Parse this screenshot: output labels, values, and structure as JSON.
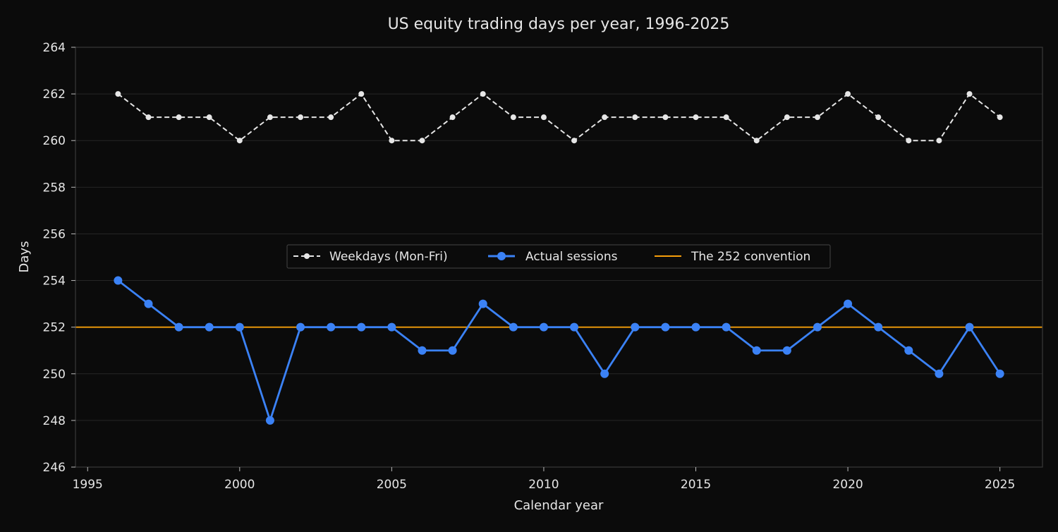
{
  "chart_data": {
    "type": "line",
    "title": "US equity trading days per year, 1996-2025",
    "xlabel": "Calendar year",
    "ylabel": "Days",
    "xlim": [
      1994.6,
      2026.4
    ],
    "ylim": [
      246,
      264
    ],
    "xticks": [
      1995,
      2000,
      2005,
      2010,
      2015,
      2020,
      2025
    ],
    "yticks": [
      246,
      248,
      250,
      252,
      254,
      256,
      258,
      260,
      262,
      264
    ],
    "grid": true,
    "legend_position": "center",
    "x": [
      1996,
      1997,
      1998,
      1999,
      2000,
      2001,
      2002,
      2003,
      2004,
      2005,
      2006,
      2007,
      2008,
      2009,
      2010,
      2011,
      2012,
      2013,
      2014,
      2015,
      2016,
      2017,
      2018,
      2019,
      2020,
      2021,
      2022,
      2023,
      2024,
      2025
    ],
    "series": [
      {
        "name": "Weekdays (Mon-Fri)",
        "color": "#e6e6e6",
        "style": "dashed",
        "values": [
          262,
          261,
          261,
          261,
          260,
          261,
          261,
          261,
          262,
          260,
          260,
          261,
          262,
          261,
          261,
          260,
          261,
          261,
          261,
          261,
          261,
          260,
          261,
          261,
          262,
          261,
          260,
          260,
          262,
          261
        ]
      },
      {
        "name": "Actual sessions",
        "color": "#3b82f6",
        "style": "solid",
        "values": [
          254,
          253,
          252,
          252,
          252,
          248,
          252,
          252,
          252,
          252,
          251,
          251,
          253,
          252,
          252,
          252,
          250,
          252,
          252,
          252,
          252,
          251,
          251,
          252,
          253,
          252,
          251,
          250,
          252,
          250
        ]
      }
    ],
    "reference_lines": [
      {
        "name": "The 252 convention",
        "color": "#f59e0b",
        "y": 252
      }
    ]
  }
}
